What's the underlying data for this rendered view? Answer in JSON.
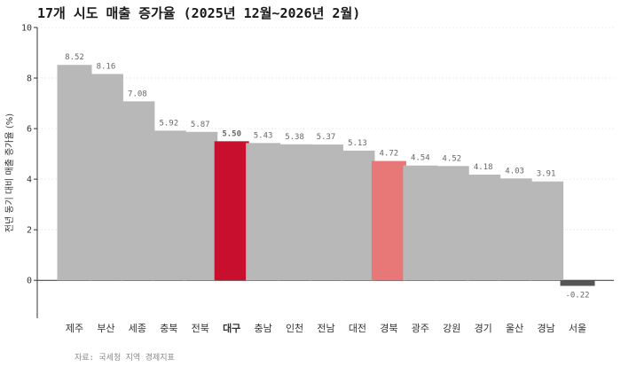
{
  "chart_data": {
    "type": "bar",
    "title": "17개 시도 매출 증가율 (2025년 12월~2026년 2월)",
    "ylabel": "전년 동기 대비 매출 증가율 (%)",
    "xlabel": "",
    "ylim": [
      -1.5,
      10
    ],
    "yticks": [
      0,
      2,
      4,
      6,
      8,
      10
    ],
    "grid": "horizontal-faint",
    "categories": [
      "제주",
      "부산",
      "세종",
      "충북",
      "전북",
      "대구",
      "충남",
      "인천",
      "전남",
      "대전",
      "경북",
      "광주",
      "강원",
      "경기",
      "울산",
      "경남",
      "서울"
    ],
    "values": [
      8.52,
      8.16,
      7.08,
      5.92,
      5.87,
      5.5,
      5.43,
      5.38,
      5.37,
      5.13,
      4.72,
      4.54,
      4.52,
      4.18,
      4.03,
      3.91,
      -0.22
    ],
    "value_labels": [
      "8.52",
      "8.16",
      "7.08",
      "5.92",
      "5.87",
      "5.50",
      "5.43",
      "5.38",
      "5.37",
      "5.13",
      "4.72",
      "4.54",
      "4.52",
      "4.18",
      "4.03",
      "3.91",
      "-0.22"
    ],
    "highlights": {
      "대구": "#c8102e",
      "경북": "#e87878"
    },
    "colors": {
      "default": "#b8b8b8",
      "negative": "#555555",
      "highlight_primary": "#c8102e",
      "highlight_secondary": "#e87878",
      "zero_line": "#333333"
    }
  },
  "source": "자료: 국세청 지역 경제지표"
}
